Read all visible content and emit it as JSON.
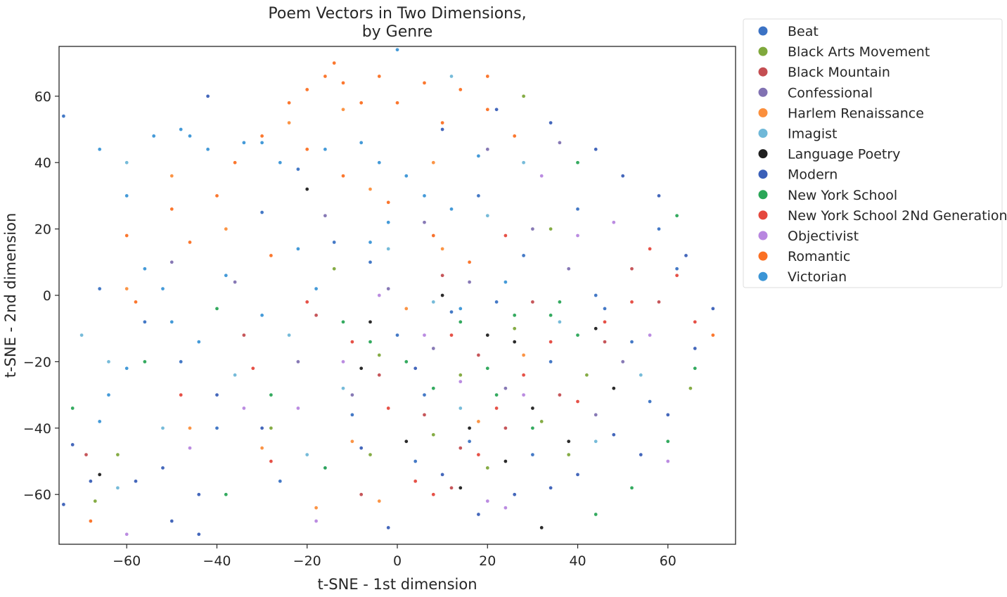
{
  "chart_data": {
    "type": "scatter",
    "title_lines": [
      "Poem Vectors in Two Dimensions,",
      "by Genre"
    ],
    "xlabel": "t-SNE - 1st dimension",
    "ylabel": "t-SNE - 2nd dimension",
    "xlim": [
      -75,
      75
    ],
    "ylim": [
      -75,
      75
    ],
    "xticks": [
      -60,
      -40,
      -20,
      0,
      20,
      40,
      60
    ],
    "yticks": [
      -60,
      -40,
      -20,
      0,
      20,
      40,
      60
    ],
    "tick_labels": {
      "x": [
        "−60",
        "−40",
        "−20",
        "0",
        "20",
        "40",
        "60"
      ],
      "y": [
        "−60",
        "−40",
        "−20",
        "0",
        "20",
        "40",
        "60"
      ]
    },
    "grid": false,
    "legend_position": "outside-top-right",
    "series": [
      {
        "name": "Beat",
        "color": "#3b72c4",
        "points": [
          [
            -74,
            54
          ],
          [
            -48,
            -20
          ],
          [
            -30,
            25
          ],
          [
            -22,
            38
          ],
          [
            -14,
            16
          ],
          [
            -6,
            10
          ],
          [
            0,
            -12
          ],
          [
            6,
            -30
          ],
          [
            12,
            -5
          ],
          [
            18,
            30
          ],
          [
            22,
            -2
          ],
          [
            28,
            12
          ],
          [
            34,
            -20
          ],
          [
            40,
            26
          ],
          [
            46,
            -4
          ],
          [
            52,
            -14
          ],
          [
            58,
            20
          ],
          [
            -56,
            -8
          ],
          [
            -40,
            -40
          ],
          [
            -26,
            -56
          ],
          [
            -10,
            -36
          ],
          [
            4,
            -50
          ],
          [
            16,
            -44
          ],
          [
            30,
            -48
          ],
          [
            44,
            0
          ],
          [
            56,
            -32
          ],
          [
            62,
            8
          ],
          [
            -66,
            2
          ]
        ]
      },
      {
        "name": "Black Arts Movement",
        "color": "#7fa83c",
        "points": [
          [
            -67,
            -62
          ],
          [
            -62,
            -48
          ],
          [
            -28,
            -40
          ],
          [
            -14,
            8
          ],
          [
            -4,
            -18
          ],
          [
            8,
            -42
          ],
          [
            14,
            -24
          ],
          [
            20,
            -52
          ],
          [
            26,
            -10
          ],
          [
            32,
            -38
          ],
          [
            38,
            -48
          ],
          [
            28,
            60
          ],
          [
            34,
            20
          ],
          [
            42,
            -24
          ],
          [
            65,
            -28
          ],
          [
            -6,
            -48
          ]
        ]
      },
      {
        "name": "Black Mountain",
        "color": "#c44e52",
        "points": [
          [
            -69,
            -48
          ],
          [
            -34,
            -12
          ],
          [
            -18,
            -6
          ],
          [
            -4,
            -24
          ],
          [
            6,
            -36
          ],
          [
            12,
            -58
          ],
          [
            18,
            -18
          ],
          [
            24,
            -40
          ],
          [
            30,
            -2
          ],
          [
            36,
            -30
          ],
          [
            46,
            -14
          ],
          [
            58,
            -2
          ],
          [
            52,
            8
          ],
          [
            10,
            6
          ],
          [
            -8,
            -60
          ],
          [
            14,
            -46
          ]
        ]
      },
      {
        "name": "Confessional",
        "color": "#8172b2",
        "points": [
          [
            -50,
            10
          ],
          [
            -36,
            4
          ],
          [
            -22,
            -20
          ],
          [
            -10,
            -30
          ],
          [
            -2,
            2
          ],
          [
            8,
            -16
          ],
          [
            16,
            4
          ],
          [
            24,
            -28
          ],
          [
            30,
            20
          ],
          [
            38,
            8
          ],
          [
            44,
            -36
          ],
          [
            50,
            -20
          ],
          [
            20,
            44
          ],
          [
            6,
            22
          ],
          [
            -16,
            24
          ],
          [
            36,
            46
          ]
        ]
      },
      {
        "name": "Harlem Renaissance",
        "color": "#fb8f3c",
        "points": [
          [
            -60,
            2
          ],
          [
            -46,
            -40
          ],
          [
            -30,
            -46
          ],
          [
            -18,
            -64
          ],
          [
            -10,
            -44
          ],
          [
            -4,
            -62
          ],
          [
            2,
            -4
          ],
          [
            10,
            14
          ],
          [
            18,
            -38
          ],
          [
            -24,
            52
          ],
          [
            -12,
            56
          ],
          [
            -6,
            32
          ],
          [
            -38,
            20
          ],
          [
            -50,
            36
          ],
          [
            8,
            40
          ],
          [
            28,
            -18
          ]
        ]
      },
      {
        "name": "Imagist",
        "color": "#6fb8d8",
        "points": [
          [
            -70,
            -12
          ],
          [
            -64,
            -20
          ],
          [
            -60,
            40
          ],
          [
            -62,
            -58
          ],
          [
            -52,
            -40
          ],
          [
            -36,
            -24
          ],
          [
            -24,
            -12
          ],
          [
            -12,
            -28
          ],
          [
            -2,
            14
          ],
          [
            8,
            -2
          ],
          [
            14,
            -34
          ],
          [
            20,
            24
          ],
          [
            28,
            40
          ],
          [
            36,
            -8
          ],
          [
            44,
            -44
          ],
          [
            12,
            66
          ],
          [
            -20,
            -48
          ],
          [
            54,
            -24
          ]
        ]
      },
      {
        "name": "Language Poetry",
        "color": "#1f1f1f",
        "points": [
          [
            -66,
            -54
          ],
          [
            -20,
            32
          ],
          [
            -6,
            -8
          ],
          [
            2,
            -44
          ],
          [
            10,
            0
          ],
          [
            16,
            -40
          ],
          [
            20,
            -12
          ],
          [
            24,
            -50
          ],
          [
            30,
            -34
          ],
          [
            32,
            -70
          ],
          [
            38,
            -44
          ],
          [
            44,
            -10
          ],
          [
            48,
            -28
          ],
          [
            14,
            -58
          ],
          [
            -8,
            -22
          ],
          [
            26,
            -14
          ]
        ]
      },
      {
        "name": "Modern",
        "color": "#3a5fb8",
        "points": [
          [
            -74,
            -63
          ],
          [
            -72,
            -45
          ],
          [
            -68,
            -56
          ],
          [
            -58,
            -56
          ],
          [
            -52,
            -52
          ],
          [
            -44,
            -60
          ],
          [
            -40,
            -30
          ],
          [
            -30,
            -40
          ],
          [
            -16,
            -52
          ],
          [
            -8,
            -46
          ],
          [
            -2,
            -70
          ],
          [
            4,
            -22
          ],
          [
            10,
            -54
          ],
          [
            18,
            -66
          ],
          [
            26,
            -60
          ],
          [
            34,
            -58
          ],
          [
            40,
            -54
          ],
          [
            48,
            -42
          ],
          [
            54,
            -48
          ],
          [
            60,
            -36
          ],
          [
            66,
            -16
          ],
          [
            70,
            -4
          ],
          [
            64,
            12
          ],
          [
            58,
            30
          ],
          [
            50,
            36
          ],
          [
            44,
            44
          ],
          [
            34,
            52
          ],
          [
            22,
            56
          ],
          [
            10,
            50
          ],
          [
            -42,
            60
          ],
          [
            -50,
            -68
          ],
          [
            -44,
            -72
          ]
        ]
      },
      {
        "name": "New York School",
        "color": "#2aa657",
        "points": [
          [
            -72,
            -34
          ],
          [
            -56,
            -20
          ],
          [
            -40,
            -4
          ],
          [
            -28,
            -30
          ],
          [
            -16,
            -52
          ],
          [
            -6,
            -14
          ],
          [
            2,
            -20
          ],
          [
            8,
            -28
          ],
          [
            14,
            -8
          ],
          [
            20,
            -22
          ],
          [
            26,
            -6
          ],
          [
            30,
            -40
          ],
          [
            34,
            -6
          ],
          [
            36,
            -2
          ],
          [
            40,
            -12
          ],
          [
            44,
            -66
          ],
          [
            52,
            -58
          ],
          [
            60,
            -44
          ],
          [
            66,
            -22
          ],
          [
            62,
            24
          ],
          [
            40,
            40
          ],
          [
            -12,
            -8
          ],
          [
            22,
            -30
          ],
          [
            -38,
            -60
          ]
        ]
      },
      {
        "name": "New York School 2Nd Generation",
        "color": "#e5483e",
        "points": [
          [
            -48,
            -30
          ],
          [
            -32,
            -22
          ],
          [
            -20,
            -2
          ],
          [
            -10,
            -14
          ],
          [
            -2,
            -34
          ],
          [
            4,
            -56
          ],
          [
            12,
            -12
          ],
          [
            18,
            -48
          ],
          [
            22,
            -34
          ],
          [
            28,
            -24
          ],
          [
            34,
            -14
          ],
          [
            40,
            -32
          ],
          [
            46,
            -8
          ],
          [
            52,
            -2
          ],
          [
            56,
            14
          ],
          [
            62,
            6
          ],
          [
            66,
            -8
          ],
          [
            -28,
            -50
          ],
          [
            8,
            -60
          ],
          [
            24,
            18
          ]
        ]
      },
      {
        "name": "Objectivist",
        "color": "#b886e0",
        "points": [
          [
            -60,
            -72
          ],
          [
            -46,
            -46
          ],
          [
            -34,
            -34
          ],
          [
            -22,
            -34
          ],
          [
            -12,
            -20
          ],
          [
            -4,
            0
          ],
          [
            6,
            -12
          ],
          [
            14,
            -26
          ],
          [
            20,
            -62
          ],
          [
            28,
            -30
          ],
          [
            32,
            36
          ],
          [
            40,
            18
          ],
          [
            48,
            22
          ],
          [
            56,
            -12
          ],
          [
            60,
            -50
          ],
          [
            -18,
            -68
          ],
          [
            24,
            -64
          ],
          [
            8,
            18
          ]
        ]
      },
      {
        "name": "Romantic",
        "color": "#fb7023",
        "points": [
          [
            -58,
            -2
          ],
          [
            -60,
            18
          ],
          [
            -50,
            26
          ],
          [
            -46,
            16
          ],
          [
            -40,
            30
          ],
          [
            -30,
            48
          ],
          [
            -24,
            58
          ],
          [
            -20,
            62
          ],
          [
            -16,
            66
          ],
          [
            -12,
            64
          ],
          [
            -8,
            58
          ],
          [
            -4,
            66
          ],
          [
            0,
            58
          ],
          [
            6,
            64
          ],
          [
            10,
            52
          ],
          [
            14,
            62
          ],
          [
            20,
            56
          ],
          [
            26,
            48
          ],
          [
            -36,
            40
          ],
          [
            -28,
            12
          ],
          [
            -20,
            44
          ],
          [
            -12,
            36
          ],
          [
            -2,
            28
          ],
          [
            8,
            18
          ],
          [
            16,
            10
          ],
          [
            20,
            66
          ],
          [
            -14,
            70
          ],
          [
            70,
            -12
          ],
          [
            -68,
            -68
          ]
        ]
      },
      {
        "name": "Victorian",
        "color": "#3b95d6",
        "points": [
          [
            -66,
            -38
          ],
          [
            -60,
            30
          ],
          [
            -54,
            48
          ],
          [
            -48,
            50
          ],
          [
            -46,
            48
          ],
          [
            -42,
            44
          ],
          [
            -34,
            46
          ],
          [
            -30,
            46
          ],
          [
            -26,
            40
          ],
          [
            -22,
            14
          ],
          [
            -16,
            44
          ],
          [
            -8,
            46
          ],
          [
            -4,
            40
          ],
          [
            0,
            74
          ],
          [
            2,
            36
          ],
          [
            6,
            30
          ],
          [
            12,
            26
          ],
          [
            18,
            42
          ],
          [
            -2,
            22
          ],
          [
            -6,
            16
          ],
          [
            -18,
            2
          ],
          [
            -30,
            -6
          ],
          [
            -38,
            6
          ],
          [
            -44,
            -14
          ],
          [
            -52,
            2
          ],
          [
            -56,
            8
          ],
          [
            -60,
            -22
          ],
          [
            -64,
            -30
          ],
          [
            -66,
            44
          ],
          [
            -50,
            -8
          ],
          [
            14,
            -4
          ],
          [
            24,
            4
          ]
        ]
      }
    ]
  }
}
